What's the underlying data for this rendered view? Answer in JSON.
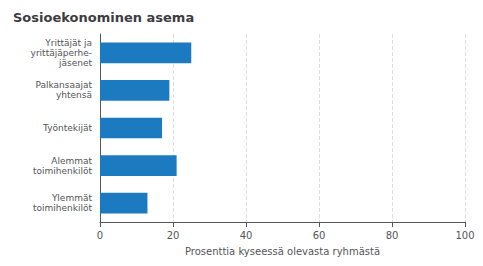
{
  "chart_data": {
    "type": "bar",
    "orientation": "horizontal",
    "title": "Sosioekonominen asema",
    "categories": [
      "Yrittäjät ja\nyrittäjäperhe-\njäsenet",
      "Palkansaajat\nyhtensä",
      "Työntekijät",
      "Alemmat\ntoimihenkilöt",
      "Ylemmät\ntoimihenkilöt"
    ],
    "values": [
      25,
      19,
      17,
      21,
      13
    ],
    "color": "#1c7bc0",
    "xlabel": "Prosenttia kyseessä olevasta ryhmästä",
    "xlim": [
      0,
      100
    ],
    "xticks": [
      0,
      20,
      40,
      60,
      80,
      100
    ],
    "grid": true
  }
}
